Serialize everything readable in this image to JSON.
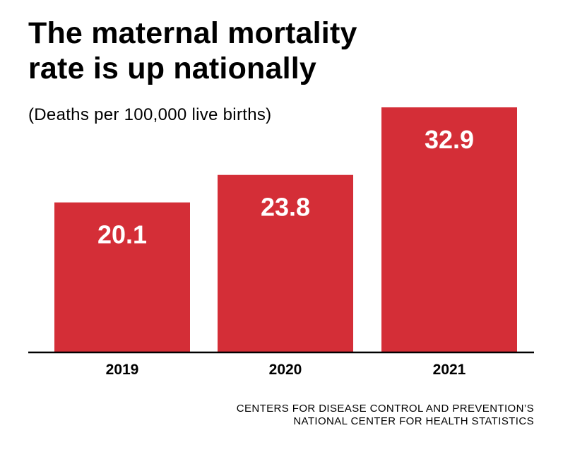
{
  "title_lines": [
    "The maternal mortality",
    "rate is up nationally"
  ],
  "subtitle": "(Deaths per 100,000 live births)",
  "source_lines": [
    "CENTERS FOR DISEASE CONTROL AND PREVENTION’S",
    "NATIONAL CENTER FOR HEALTH STATISTICS"
  ],
  "colors": {
    "bar": "#d42e37",
    "label_on_bar": "#ffffff",
    "axis": "#000000"
  },
  "chart_data": {
    "type": "bar",
    "title": "The maternal mortality rate is up nationally",
    "subtitle": "(Deaths per 100,000 live births)",
    "categories": [
      "2019",
      "2020",
      "2021"
    ],
    "values": [
      20.1,
      23.8,
      32.9
    ],
    "value_labels": [
      "20.1",
      "23.8",
      "32.9"
    ],
    "xlabel": "",
    "ylabel": "",
    "ylim": [
      0,
      32.9
    ],
    "grid": false,
    "legend": "none"
  }
}
